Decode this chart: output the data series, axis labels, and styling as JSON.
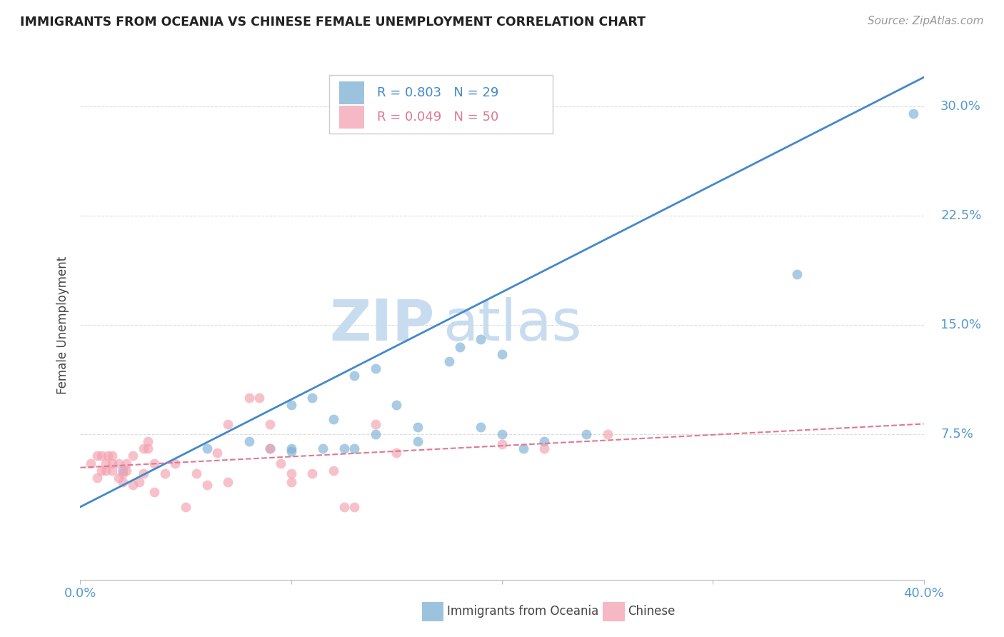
{
  "title": "IMMIGRANTS FROM OCEANIA VS CHINESE FEMALE UNEMPLOYMENT CORRELATION CHART",
  "source": "Source: ZipAtlas.com",
  "ylabel": "Female Unemployment",
  "ytick_labels": [
    "30.0%",
    "22.5%",
    "15.0%",
    "7.5%"
  ],
  "ytick_values": [
    0.3,
    0.225,
    0.15,
    0.075
  ],
  "xlim": [
    0.0,
    0.4
  ],
  "ylim": [
    -0.025,
    0.325
  ],
  "legend_blue_r": "R = 0.803",
  "legend_blue_n": "N = 29",
  "legend_pink_r": "R = 0.049",
  "legend_pink_n": "N = 50",
  "legend_label_blue": "Immigrants from Oceania",
  "legend_label_pink": "Chinese",
  "blue_color": "#7BAFD4",
  "pink_color": "#F4A0B0",
  "blue_line_color": "#4488CC",
  "pink_line_color": "#E07890",
  "watermark_zip": "ZIP",
  "watermark_atlas": "atlas",
  "blue_scatter_x": [
    0.02,
    0.06,
    0.08,
    0.09,
    0.1,
    0.1,
    0.1,
    0.11,
    0.115,
    0.12,
    0.125,
    0.13,
    0.13,
    0.14,
    0.14,
    0.15,
    0.16,
    0.16,
    0.175,
    0.18,
    0.19,
    0.19,
    0.2,
    0.2,
    0.21,
    0.22,
    0.24,
    0.34,
    0.395
  ],
  "blue_scatter_y": [
    0.05,
    0.065,
    0.07,
    0.065,
    0.063,
    0.065,
    0.095,
    0.1,
    0.065,
    0.085,
    0.065,
    0.065,
    0.115,
    0.12,
    0.075,
    0.095,
    0.08,
    0.07,
    0.125,
    0.135,
    0.08,
    0.14,
    0.13,
    0.075,
    0.065,
    0.07,
    0.075,
    0.185,
    0.295
  ],
  "pink_scatter_x": [
    0.005,
    0.008,
    0.008,
    0.01,
    0.01,
    0.012,
    0.012,
    0.013,
    0.015,
    0.015,
    0.015,
    0.018,
    0.018,
    0.02,
    0.02,
    0.022,
    0.022,
    0.025,
    0.025,
    0.028,
    0.03,
    0.03,
    0.032,
    0.032,
    0.035,
    0.035,
    0.04,
    0.045,
    0.05,
    0.055,
    0.06,
    0.065,
    0.07,
    0.07,
    0.08,
    0.085,
    0.09,
    0.09,
    0.095,
    0.1,
    0.1,
    0.11,
    0.12,
    0.125,
    0.13,
    0.14,
    0.15,
    0.2,
    0.22,
    0.25
  ],
  "pink_scatter_y": [
    0.055,
    0.045,
    0.06,
    0.05,
    0.06,
    0.05,
    0.055,
    0.06,
    0.05,
    0.055,
    0.06,
    0.045,
    0.055,
    0.042,
    0.048,
    0.05,
    0.055,
    0.04,
    0.06,
    0.042,
    0.065,
    0.048,
    0.065,
    0.07,
    0.055,
    0.035,
    0.048,
    0.055,
    0.025,
    0.048,
    0.04,
    0.062,
    0.042,
    0.082,
    0.1,
    0.1,
    0.065,
    0.082,
    0.055,
    0.042,
    0.048,
    0.048,
    0.05,
    0.025,
    0.025,
    0.082,
    0.062,
    0.068,
    0.065,
    0.075
  ],
  "blue_line_x": [
    0.0,
    0.4
  ],
  "blue_line_y": [
    0.025,
    0.32
  ],
  "pink_line_x": [
    0.0,
    0.4
  ],
  "pink_line_y": [
    0.052,
    0.082
  ],
  "background_color": "#FFFFFF",
  "grid_color": "#DDDDDD",
  "title_color": "#222222",
  "axis_tick_color": "#5599CC"
}
